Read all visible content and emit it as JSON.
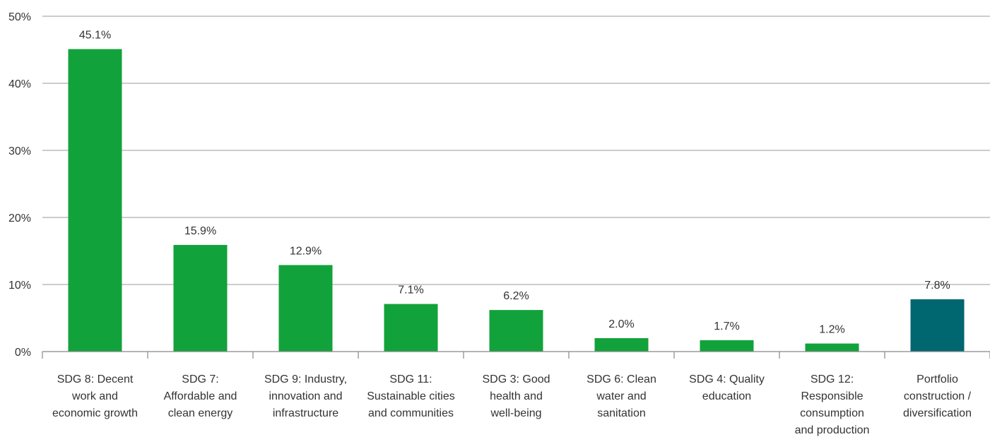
{
  "chart_data": {
    "type": "bar",
    "title": "",
    "xlabel": "",
    "ylabel": "",
    "ylim": [
      0,
      50
    ],
    "yticks": [
      "0%",
      "10%",
      "20%",
      "30%",
      "40%",
      "50%"
    ],
    "grid": true,
    "categories": [
      [
        "SDG 8: Decent",
        "work and",
        "economic growth"
      ],
      [
        "SDG 7:",
        "Affordable and",
        "clean energy"
      ],
      [
        "SDG 9: Industry,",
        "innovation and",
        "infrastructure"
      ],
      [
        "SDG 11:",
        "Sustainable cities",
        "and communities"
      ],
      [
        "SDG 3: Good",
        "health and",
        "well-being"
      ],
      [
        "SDG 6: Clean",
        "water and",
        "sanitation"
      ],
      [
        "SDG 4: Quality",
        "education"
      ],
      [
        "SDG 12:",
        "Responsible",
        "consumption",
        "and production"
      ],
      [
        "Portfolio",
        "construction /",
        "diversification"
      ]
    ],
    "values": [
      45.1,
      15.9,
      12.9,
      7.1,
      6.2,
      2.0,
      1.7,
      1.2,
      7.8
    ],
    "value_labels": [
      "45.1%",
      "15.9%",
      "12.9%",
      "7.1%",
      "6.2%",
      "2.0%",
      "1.7%",
      "1.2%",
      "7.8%"
    ],
    "bar_colors": [
      "#12a23b",
      "#12a23b",
      "#12a23b",
      "#12a23b",
      "#12a23b",
      "#12a23b",
      "#12a23b",
      "#12a23b",
      "#006670"
    ]
  }
}
